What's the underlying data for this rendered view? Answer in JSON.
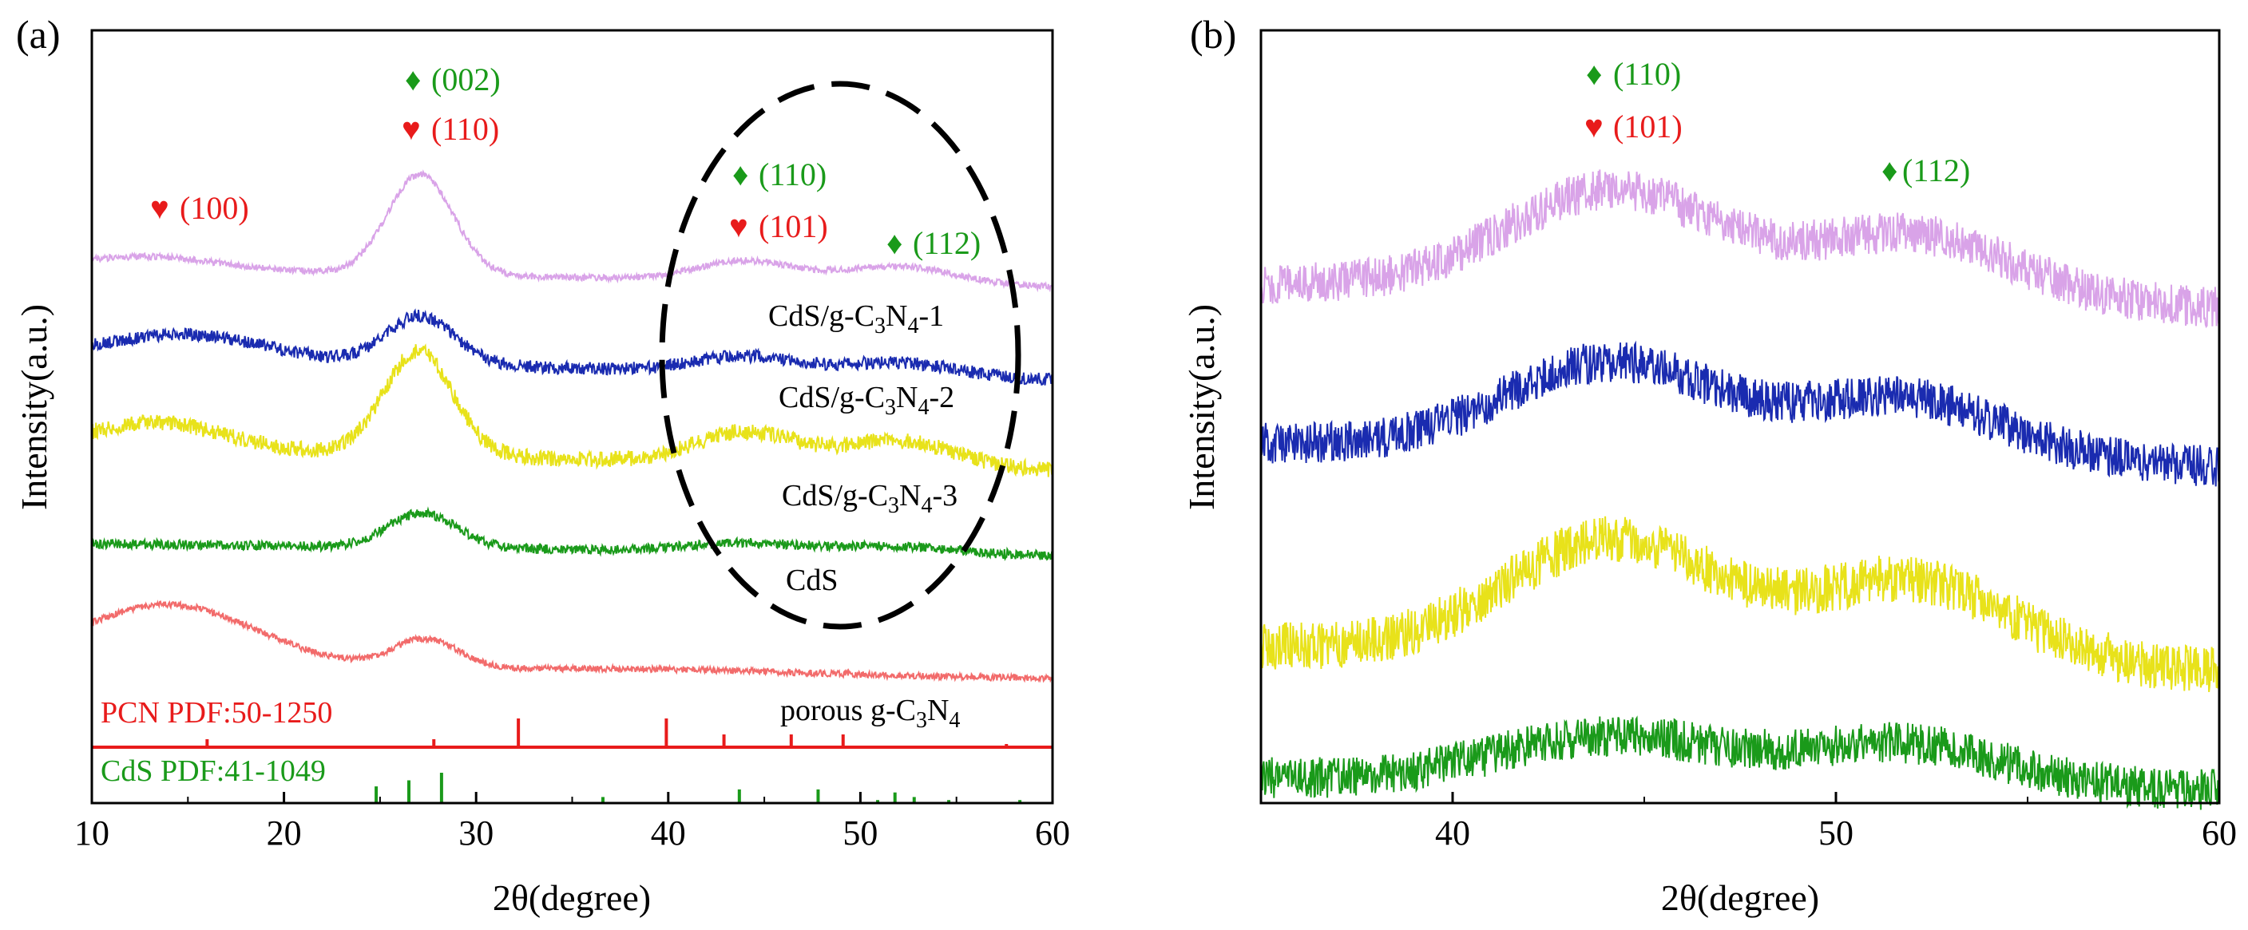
{
  "chart_data": [
    {
      "panel": "(a)",
      "type": "line",
      "xlabel": "2θ(degree)",
      "ylabel": "Intensity(a.u.)",
      "xlim": [
        10,
        60
      ],
      "xticks": [
        "10",
        "20",
        "30",
        "40",
        "50",
        "60"
      ],
      "series": [
        {
          "name": "porous g-C3N4",
          "color": "#f26b6b",
          "peaks": [
            {
              "x": 14.0,
              "h": 0.62,
              "w": 4.5
            },
            {
              "x": 27.4,
              "h": 0.3,
              "w": 1.7
            },
            {
              "x": 41,
              "h": 0.03,
              "w": 6
            }
          ]
        },
        {
          "name": "CdS",
          "color": "#1a9a1a",
          "peaks": [
            {
              "x": 27.2,
              "h": 0.48,
              "w": 1.8
            },
            {
              "x": 44,
              "h": 0.12,
              "w": 3
            },
            {
              "x": 51.8,
              "h": 0.1,
              "w": 3
            }
          ]
        },
        {
          "name": "CdS/g-C3N4-3",
          "color": "#e8e21a",
          "peaks": [
            {
              "x": 13.5,
              "h": 0.25,
              "w": 3.5
            },
            {
              "x": 27.0,
              "h": 1.0,
              "w": 1.8
            },
            {
              "x": 44,
              "h": 0.3,
              "w": 2.6
            },
            {
              "x": 52,
              "h": 0.25,
              "w": 3
            }
          ]
        },
        {
          "name": "CdS/g-C3N4-2",
          "color": "#1a2bb0",
          "peaks": [
            {
              "x": 15,
              "h": 0.3,
              "w": 4
            },
            {
              "x": 27.1,
              "h": 0.6,
              "w": 1.8
            },
            {
              "x": 44,
              "h": 0.2,
              "w": 2.6
            },
            {
              "x": 52,
              "h": 0.17,
              "w": 3
            }
          ]
        },
        {
          "name": "CdS/g-C3N4-1",
          "color": "#d9a3e8",
          "peaks": [
            {
              "x": 13,
              "h": 0.15,
              "w": 3.5
            },
            {
              "x": 27.1,
              "h": 1.25,
              "w": 1.7
            },
            {
              "x": 44,
              "h": 0.25,
              "w": 2.5
            },
            {
              "x": 52,
              "h": 0.22,
              "w": 3
            }
          ]
        }
      ],
      "sample_labels": [
        {
          "main": "CdS/g-C",
          "sub1": "3",
          "mid": "N",
          "sub2": "4",
          "tail": "-1"
        },
        {
          "main": "CdS/g-C",
          "sub1": "3",
          "mid": "N",
          "sub2": "4",
          "tail": "-2"
        },
        {
          "main": "CdS/g-C",
          "sub1": "3",
          "mid": "N",
          "sub2": "4",
          "tail": "-3"
        },
        {
          "main": "CdS",
          "sub1": "",
          "mid": "",
          "sub2": "",
          "tail": ""
        },
        {
          "main": "porous g-C",
          "sub1": "3",
          "mid": "N",
          "sub2": "4",
          "tail": ""
        }
      ],
      "annotations": [
        {
          "symbol": "♦",
          "text": "(002)",
          "color": "#1a9a1a"
        },
        {
          "symbol": "♥",
          "text": "(110)",
          "color": "#e81b1b"
        },
        {
          "symbol": "♥",
          "text": "(100)",
          "color": "#e81b1b"
        },
        {
          "symbol": "♦",
          "text": "(110)",
          "color": "#1a9a1a"
        },
        {
          "symbol": "♥",
          "text": "(101)",
          "color": "#e81b1b"
        },
        {
          "symbol": "♦",
          "text": "(112)",
          "color": "#1a9a1a"
        }
      ],
      "reference_patterns": [
        {
          "label": "PCN PDF:50-1250",
          "color": "#e81b1b",
          "lines": [
            {
              "x": 16.0,
              "h": 0.25
            },
            {
              "x": 27.8,
              "h": 0.25
            },
            {
              "x": 32.2,
              "h": 0.9
            },
            {
              "x": 39.9,
              "h": 0.9
            },
            {
              "x": 42.9,
              "h": 0.4
            },
            {
              "x": 46.4,
              "h": 0.4
            },
            {
              "x": 49.1,
              "h": 0.4
            },
            {
              "x": 57.6,
              "h": 0.1
            }
          ]
        },
        {
          "label": "CdS PDF:41-1049",
          "color": "#1a9a1a",
          "lines": [
            {
              "x": 24.8,
              "h": 0.55
            },
            {
              "x": 26.5,
              "h": 0.75
            },
            {
              "x": 28.2,
              "h": 1.0
            },
            {
              "x": 36.6,
              "h": 0.2
            },
            {
              "x": 43.7,
              "h": 0.45
            },
            {
              "x": 47.8,
              "h": 0.45
            },
            {
              "x": 50.9,
              "h": 0.1
            },
            {
              "x": 51.8,
              "h": 0.35
            },
            {
              "x": 52.8,
              "h": 0.2
            },
            {
              "x": 54.6,
              "h": 0.1
            },
            {
              "x": 58.3,
              "h": 0.1
            }
          ]
        }
      ]
    },
    {
      "panel": "(b)",
      "type": "line",
      "xlabel": "2θ(degree)",
      "ylabel": "Intensity(a.u.)",
      "xlim": [
        35,
        60
      ],
      "xticks": [
        "40",
        "50",
        "60"
      ],
      "series": [
        {
          "name": "CdS",
          "color": "#1a9a1a",
          "peaks": [
            {
              "x": 44.2,
              "h": 0.45,
              "w": 3
            },
            {
              "x": 51.8,
              "h": 0.4,
              "w": 2.6
            }
          ]
        },
        {
          "name": "CdS/g-C3N4-3",
          "color": "#e8e21a",
          "peaks": [
            {
              "x": 44.2,
              "h": 0.85,
              "w": 2.8
            },
            {
              "x": 52,
              "h": 0.6,
              "w": 2.6
            }
          ]
        },
        {
          "name": "CdS/g-C3N4-2",
          "color": "#1a2bb0",
          "peaks": [
            {
              "x": 44.2,
              "h": 0.75,
              "w": 2.8
            },
            {
              "x": 51.8,
              "h": 0.5,
              "w": 2.6
            }
          ]
        },
        {
          "name": "CdS/g-C3N4-1",
          "color": "#d9a3e8",
          "peaks": [
            {
              "x": 44.2,
              "h": 0.8,
              "w": 2.8
            },
            {
              "x": 52,
              "h": 0.5,
              "w": 2.6
            }
          ]
        }
      ],
      "annotations": [
        {
          "symbol": "♦",
          "text": "(110)",
          "color": "#1a9a1a"
        },
        {
          "symbol": "♥",
          "text": "(101)",
          "color": "#e81b1b"
        },
        {
          "symbol": "♦",
          "text": "(112)",
          "color": "#1a9a1a"
        }
      ]
    }
  ]
}
